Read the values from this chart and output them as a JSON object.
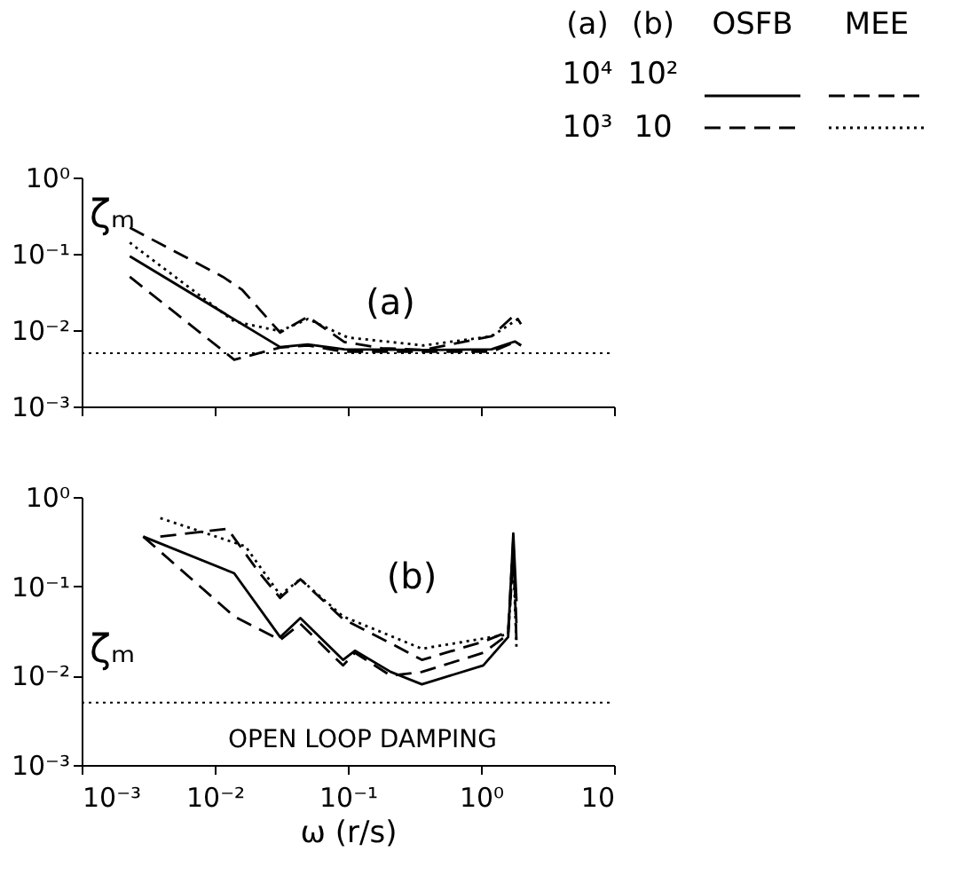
{
  "chart_data": [
    {
      "type": "line",
      "ylabel": "ζₘ",
      "xlim": [
        0.001,
        10
      ],
      "ylim": [
        0.001,
        1
      ],
      "log": "xy",
      "grid": false,
      "tick_labels": "y",
      "xticks": [
        {
          "value": 0.001,
          "label": null
        },
        {
          "value": 0.01,
          "label": null
        },
        {
          "value": 0.1,
          "label": null
        },
        {
          "value": 1,
          "label": null
        },
        {
          "value": 10,
          "label": null
        }
      ],
      "yticks": [
        {
          "value": 0.001,
          "label": "10⁻³"
        },
        {
          "value": 0.01,
          "label": "10⁻²"
        },
        {
          "value": 0.1,
          "label": "10⁻¹"
        },
        {
          "value": 1,
          "label": "10⁰"
        }
      ],
      "series": [
        {
          "color": "#000000",
          "line_style": "solid",
          "x": [
            0.0023,
            0.031,
            0.05,
            0.094,
            0.37,
            1.2,
            1.8,
            2.0
          ],
          "values": [
            0.093,
            0.006,
            0.0065,
            0.0056,
            0.0055,
            0.0056,
            0.0071,
            0.0063
          ]
        },
        {
          "color": "#000000",
          "line_style": "dashed",
          "x": [
            0.0023,
            0.014,
            0.031,
            0.05,
            0.094,
            0.37,
            1.2,
            1.8,
            2.0
          ],
          "values": [
            0.05,
            0.0041,
            0.0059,
            0.0063,
            0.0052,
            0.0052,
            0.0052,
            0.007,
            0.0063
          ]
        },
        {
          "color": "#000000",
          "line_style": "dashed",
          "x": [
            0.0023,
            0.0115,
            0.016,
            0.031,
            0.05,
            0.094,
            0.18,
            0.37,
            1.2,
            1.8,
            2.0
          ],
          "values": [
            0.22,
            0.05,
            0.034,
            0.0093,
            0.015,
            0.007,
            0.0058,
            0.0055,
            0.0083,
            0.016,
            0.012
          ]
        },
        {
          "color": "#000000",
          "line_style": "dotted",
          "x": [
            0.0023,
            0.014,
            0.031,
            0.05,
            0.1,
            0.37,
            1.2,
            1.9
          ],
          "values": [
            0.14,
            0.013,
            0.0097,
            0.014,
            0.008,
            0.0063,
            0.0083,
            0.014
          ]
        }
      ],
      "ref_lines": [
        {
          "axis": "y",
          "value": 0.005,
          "line_style": "dotted"
        }
      ],
      "annotations": [
        "(a)",
        "(a)",
        "(b)",
        "OSFB",
        "MEE",
        "10⁴",
        "10²",
        "10³",
        "10"
      ]
    },
    {
      "type": "line",
      "xlabel": "ω (r/s)",
      "ylabel": "ζₘ",
      "xlim": [
        0.001,
        10
      ],
      "ylim": [
        0.001,
        1
      ],
      "log": "xy",
      "grid": false,
      "xticks": [
        {
          "value": 0.001,
          "label": "10⁻³"
        },
        {
          "value": 0.01,
          "label": "10⁻²"
        },
        {
          "value": 0.1,
          "label": "10⁻¹"
        },
        {
          "value": 1,
          "label": "10⁰"
        },
        10
      ],
      "yticks": [
        {
          "value": 0.001,
          "label": "10⁻³"
        },
        {
          "value": 0.01,
          "label": "10⁻²"
        },
        {
          "value": 0.1,
          "label": "10⁻¹"
        },
        {
          "value": 1,
          "label": "10⁰"
        }
      ],
      "series": [
        {
          "color": "#000000",
          "line_style": "solid",
          "x": [
            0.0029,
            0.014,
            0.031,
            0.044,
            0.092,
            0.113,
            0.21,
            0.36,
            1.04,
            1.6,
            1.75,
            1.85
          ],
          "values": [
            0.36,
            0.14,
            0.027,
            0.044,
            0.015,
            0.019,
            0.011,
            0.008,
            0.013,
            0.027,
            0.39,
            0.068
          ]
        },
        {
          "color": "#000000",
          "line_style": "dashed",
          "x": [
            0.0029,
            0.014,
            0.031,
            0.044,
            0.092,
            0.113,
            0.21,
            0.36,
            1.04,
            1.6,
            1.75,
            1.85
          ],
          "values": [
            0.36,
            0.046,
            0.025,
            0.038,
            0.013,
            0.018,
            0.01,
            0.011,
            0.018,
            0.029,
            0.21,
            0.037
          ]
        },
        {
          "color": "#000000",
          "line_style": "dashed",
          "x": [
            0.0039,
            0.0125,
            0.021,
            0.031,
            0.044,
            0.092,
            0.21,
            0.36,
            1.04,
            1.6,
            1.75,
            1.85
          ],
          "values": [
            0.36,
            0.44,
            0.15,
            0.074,
            0.12,
            0.043,
            0.023,
            0.015,
            0.024,
            0.031,
            0.33,
            0.023
          ]
        },
        {
          "color": "#000000",
          "line_style": "dotted",
          "x": [
            0.0039,
            0.017,
            0.031,
            0.044,
            0.092,
            0.36,
            1.04,
            1.6,
            1.75,
            1.85
          ],
          "values": [
            0.58,
            0.28,
            0.08,
            0.12,
            0.046,
            0.02,
            0.026,
            0.029,
            0.21,
            0.02
          ]
        }
      ],
      "ref_lines": [
        {
          "axis": "y",
          "value": 0.005,
          "line_style": "dotted",
          "label": "OPEN LOOP DAMPING"
        }
      ],
      "annotations": [
        "(b)"
      ]
    }
  ]
}
